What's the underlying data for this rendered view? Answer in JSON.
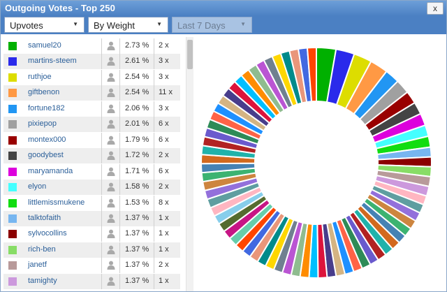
{
  "window": {
    "title": "Outgoing Votes - Top 250",
    "close_label": "x"
  },
  "toolbar": {
    "type_select": "Upvotes",
    "sort_select": "By Weight",
    "range_select": "Last 7 Days"
  },
  "votes": [
    {
      "name": "samuel20",
      "pct": "2.73 %",
      "count": "2 x",
      "color": "#00b000"
    },
    {
      "name": "martins-steem",
      "pct": "2.61 %",
      "count": "3 x",
      "color": "#2a2aeb"
    },
    {
      "name": "ruthjoe",
      "pct": "2.54 %",
      "count": "3 x",
      "color": "#dddd00"
    },
    {
      "name": "giftbenon",
      "pct": "2.54 %",
      "count": "11 x",
      "color": "#ff9944"
    },
    {
      "name": "fortune182",
      "pct": "2.06 %",
      "count": "3 x",
      "color": "#2196f3"
    },
    {
      "name": "pixiepop",
      "pct": "2.01 %",
      "count": "6 x",
      "color": "#a0a0a0"
    },
    {
      "name": "montex000",
      "pct": "1.79 %",
      "count": "6 x",
      "color": "#990000"
    },
    {
      "name": "goodybest",
      "pct": "1.72 %",
      "count": "2 x",
      "color": "#444444"
    },
    {
      "name": "maryamanda",
      "pct": "1.71 %",
      "count": "6 x",
      "color": "#dd00dd"
    },
    {
      "name": "elyon",
      "pct": "1.58 %",
      "count": "2 x",
      "color": "#44ffff"
    },
    {
      "name": "littlemissmukene",
      "pct": "1.53 %",
      "count": "8 x",
      "color": "#11dd11"
    },
    {
      "name": "talktofaith",
      "pct": "1.37 %",
      "count": "1 x",
      "color": "#77b6f0"
    },
    {
      "name": "sylvocollins",
      "pct": "1.37 %",
      "count": "1 x",
      "color": "#8b0000"
    },
    {
      "name": "rich-ben",
      "pct": "1.37 %",
      "count": "1 x",
      "color": "#88dd66"
    },
    {
      "name": "janetf",
      "pct": "1.37 %",
      "count": "2 x",
      "color": "#b89a9a"
    },
    {
      "name": "tamighty",
      "pct": "1.37 %",
      "count": "1 x",
      "color": "#cc99dd"
    }
  ],
  "colors": {
    "titlebar": "#4b80c3",
    "link": "#2b5f99",
    "row_alt": "#eeeeee"
  },
  "chart_data": {
    "type": "pie",
    "donut": true,
    "categories": [
      "samuel20",
      "martins-steem",
      "ruthjoe",
      "giftbenon",
      "fortune182",
      "pixiepop",
      "montex000",
      "goodybest",
      "maryamanda",
      "elyon",
      "littlemissmukene",
      "talktofaith",
      "sylvocollins",
      "rich-ben",
      "janetf",
      "tamighty"
    ],
    "values": [
      2.73,
      2.61,
      2.54,
      2.54,
      2.06,
      2.01,
      1.79,
      1.72,
      1.71,
      1.58,
      1.53,
      1.37,
      1.37,
      1.37,
      1.37,
      1.37
    ],
    "remainder": {
      "slice_count": 56,
      "colors": [
        "#ffb6c1",
        "#5f9ea0",
        "#9370db",
        "#cd853f",
        "#3cb371",
        "#4682b4",
        "#d2691e",
        "#20b2aa",
        "#b22222",
        "#6a5acd",
        "#2e8b57",
        "#ff6347",
        "#1e90ff",
        "#d4b483",
        "#483d8b",
        "#dc143c",
        "#00bfff",
        "#ff8c00",
        "#8fbc8f",
        "#ba55d3",
        "#708090",
        "#ffd700",
        "#008b8b",
        "#e9967a",
        "#4169e1",
        "#ff4500",
        "#66cdaa",
        "#c71585",
        "#556b2f",
        "#87ceeb"
      ]
    }
  }
}
